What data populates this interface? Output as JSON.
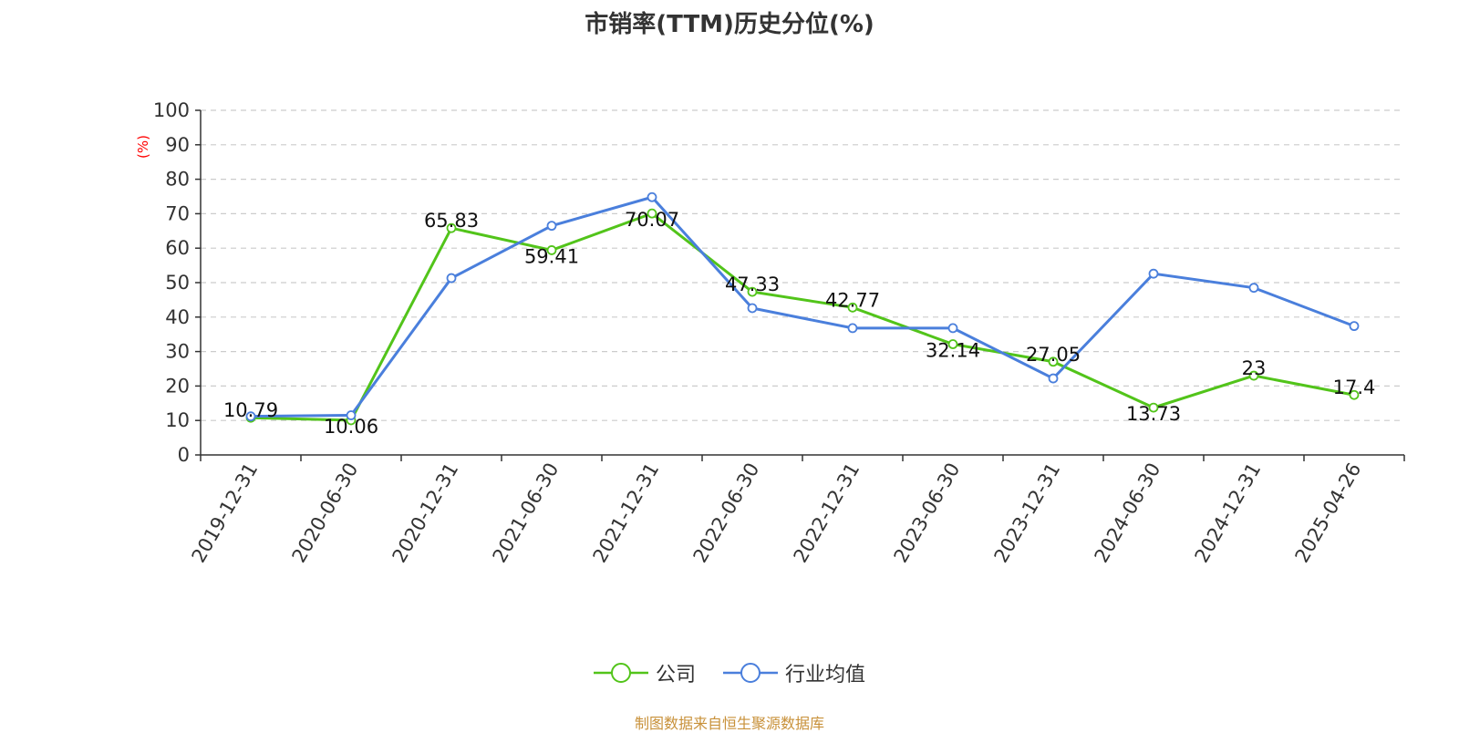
{
  "chart_data": {
    "type": "line",
    "title": "市销率(TTM)历史分位(%)",
    "ylabel": "(%)",
    "ylim": [
      0,
      100
    ],
    "yticks": [
      0,
      10,
      20,
      30,
      40,
      50,
      60,
      70,
      80,
      90,
      100
    ],
    "categories": [
      "2019-12-31",
      "2020-06-30",
      "2020-12-31",
      "2021-06-30",
      "2021-12-31",
      "2022-06-30",
      "2022-12-31",
      "2023-06-30",
      "2023-12-31",
      "2024-06-30",
      "2024-12-31",
      "2025-04-26"
    ],
    "grid": true,
    "legend_position": "bottom-center",
    "series": [
      {
        "name": "公司",
        "color": "#52c41a",
        "values": [
          10.79,
          10.06,
          65.83,
          59.41,
          70.07,
          47.33,
          42.77,
          32.14,
          27.05,
          13.73,
          23,
          17.4
        ],
        "labels": [
          "10.79",
          "10.06",
          "65.83",
          "59.41",
          "70.07",
          "47.33",
          "42.77",
          "32.14",
          "27.05",
          "13.73",
          "23",
          "17.4"
        ]
      },
      {
        "name": "行业均值",
        "color": "#4a7fdc",
        "values": [
          11.2,
          11.5,
          51.3,
          66.5,
          74.8,
          42.6,
          36.8,
          36.8,
          22.2,
          52.6,
          48.5,
          37.4
        ]
      }
    ]
  },
  "source": "制图数据来自恒生聚源数据库",
  "colors": {
    "source": "#c8913a",
    "axis": "#333333",
    "grid": "#cccccc",
    "ylabel": "#ff0000"
  }
}
